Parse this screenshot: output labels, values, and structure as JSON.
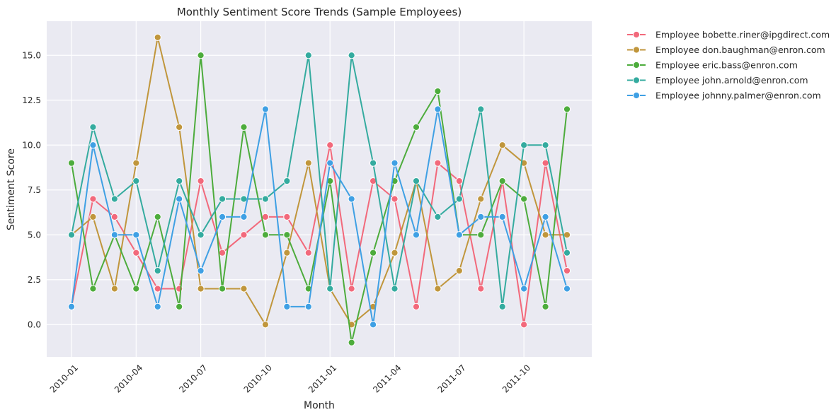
{
  "chart_data": {
    "type": "line",
    "title": "Monthly Sentiment Score Trends (Sample Employees)",
    "xlabel": "Month",
    "ylabel": "Sentiment Score",
    "x": [
      "2010-01",
      "2010-02",
      "2010-03",
      "2010-04",
      "2010-05",
      "2010-06",
      "2010-07",
      "2010-08",
      "2010-09",
      "2010-10",
      "2010-11",
      "2010-12",
      "2011-01",
      "2011-02",
      "2011-03",
      "2011-04",
      "2011-05",
      "2011-06",
      "2011-07",
      "2011-08",
      "2011-09",
      "2011-10",
      "2011-11",
      "2011-12"
    ],
    "x_ticks": [
      "2010-01",
      "2010-04",
      "2010-07",
      "2010-10",
      "2011-01",
      "2011-04",
      "2011-07",
      "2011-10"
    ],
    "y_ticks": [
      "0.0",
      "2.5",
      "5.0",
      "7.5",
      "10.0",
      "12.5",
      "15.0"
    ],
    "ylim": [
      -1.8,
      16.9
    ],
    "grid": true,
    "legend_position": "outside-top-right",
    "series": [
      {
        "name": "Employee bobette.riner@ipgdirect.com",
        "color": "#f2697b",
        "values": [
          1,
          7,
          6,
          4,
          2,
          2,
          8,
          4,
          5,
          6,
          6,
          4,
          10,
          2,
          8,
          7,
          1,
          9,
          8,
          2,
          8,
          0,
          9,
          3
        ]
      },
      {
        "name": "Employee don.baughman@enron.com",
        "color": "#c0963c",
        "values": [
          5,
          6,
          2,
          9,
          16,
          11,
          2,
          2,
          2,
          0,
          4,
          9,
          2,
          0,
          1,
          4,
          8,
          2,
          3,
          7,
          10,
          9,
          5,
          5
        ]
      },
      {
        "name": "Employee eric.bass@enron.com",
        "color": "#4dac3c",
        "values": [
          9,
          2,
          5,
          2,
          6,
          1,
          15,
          2,
          11,
          5,
          5,
          2,
          8,
          -1,
          4,
          8,
          11,
          13,
          5,
          5,
          8,
          7,
          1,
          12
        ]
      },
      {
        "name": "Employee john.arnold@enron.com",
        "color": "#34ab9f",
        "values": [
          5,
          11,
          7,
          8,
          3,
          8,
          5,
          7,
          7,
          7,
          8,
          15,
          2,
          15,
          9,
          2,
          8,
          6,
          7,
          12,
          1,
          10,
          10,
          4
        ]
      },
      {
        "name": "Employee johnny.palmer@enron.com",
        "color": "#3fa0e4",
        "values": [
          1,
          10,
          5,
          5,
          1,
          7,
          3,
          6,
          6,
          12,
          1,
          1,
          9,
          7,
          0,
          9,
          5,
          12,
          5,
          6,
          6,
          2,
          6,
          2
        ]
      }
    ]
  }
}
